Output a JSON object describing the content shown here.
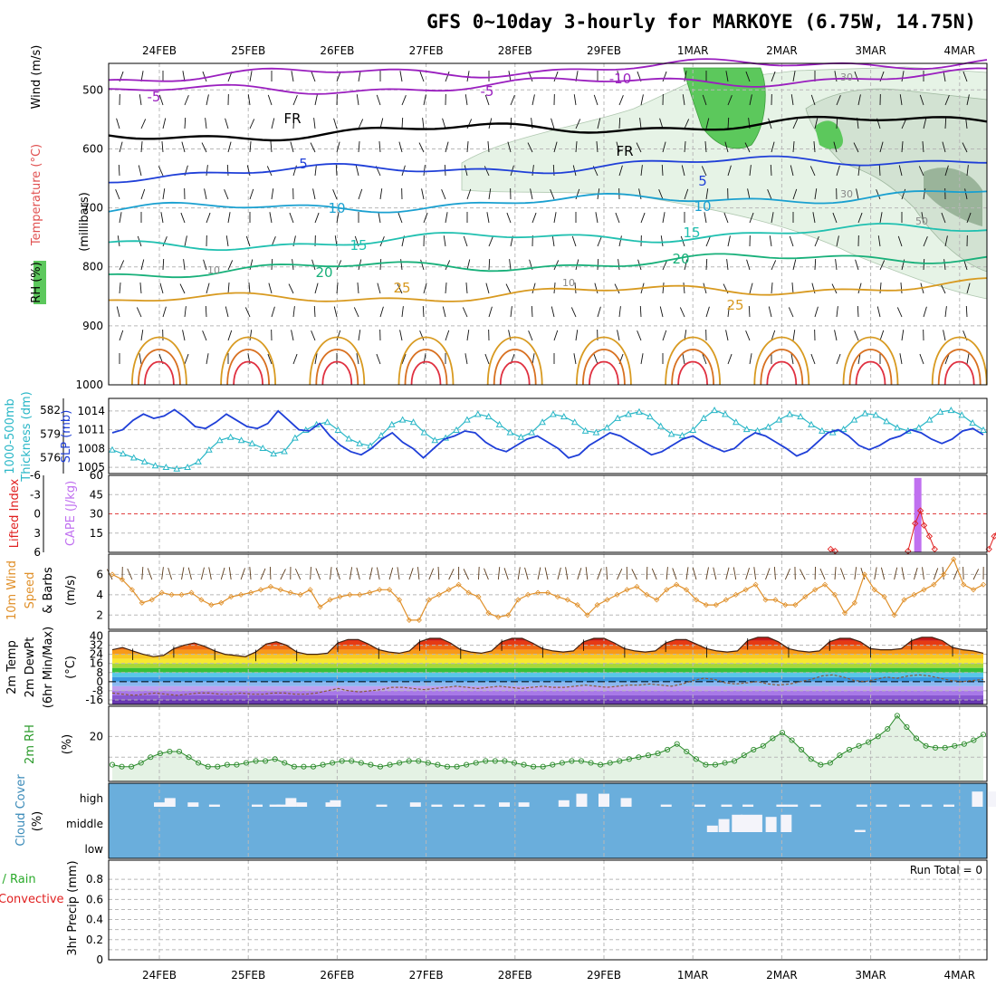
{
  "title": "GFS 0~10day 3-hourly for MARKOYE (6.75W, 14.75N)",
  "run_total": "Run Total = 0",
  "colors": {
    "temp_labels": [
      "#9a1fbf",
      "#1f3fd8",
      "#1aa0d0",
      "#20c0b0",
      "#18b07a",
      "#d89a20",
      "#d87020"
    ],
    "wind_series": "#e0902a",
    "thickness": "#2ab7c7",
    "slp": "#1f3fd8",
    "cape": "#c070f0",
    "lifted": "#e02020",
    "rh2m": "#2a8a2a",
    "cloud": "#6aaedc",
    "precip_total": "#2aaa2a",
    "precip_conv": "#e02020"
  },
  "chart_data": [
    {
      "type": "line",
      "name": "upper_air",
      "x_dates": [
        "24FEB",
        "25FEB",
        "26FEB",
        "27FEB",
        "28FEB",
        "29FEB",
        "1MAR",
        "2MAR",
        "3MAR",
        "4MAR"
      ],
      "left_axis": {
        "lines": [
          "Wind (m/s)",
          "Temperature (°C)",
          "RH (%)"
        ]
      },
      "right_axis_label": "(millibars)",
      "ylabel_units": "(millibars)",
      "yticks": [
        500,
        600,
        700,
        800,
        900,
        1000
      ],
      "ylim": [
        455,
        1000
      ],
      "contour_labels": [
        "-10",
        "-5",
        "-5",
        "FR",
        "FR",
        "5",
        "5",
        "10",
        "10",
        "15",
        "15",
        "20",
        "20",
        "25",
        "25",
        "30",
        "30",
        "50",
        "10",
        "10"
      ],
      "isotherms": [
        {
          "label": "-10",
          "level": "480",
          "color": "#9a1fbf"
        },
        {
          "label": "-5",
          "level": "505",
          "color": "#9a1fbf"
        },
        {
          "label": "FR",
          "level": "580",
          "color": "#000000"
        },
        {
          "label": "5",
          "level": "645",
          "color": "#1f3fd8"
        },
        {
          "label": "10",
          "level": "705",
          "color": "#1aa0d0"
        },
        {
          "label": "15",
          "level": "765",
          "color": "#20c0b0"
        },
        {
          "label": "20",
          "level": "810",
          "color": "#18b07a"
        },
        {
          "label": "25",
          "level": "860",
          "color": "#d89a20"
        }
      ]
    },
    {
      "type": "line",
      "name": "thickness_slp",
      "left_axis": {
        "lines": [
          "1000-500mb",
          "Thickness (dm)"
        ]
      },
      "right_axis_label": "SLP (mb)",
      "thickness_ticks": [
        "582",
        "579",
        "576"
      ],
      "slp_ticks": [
        "1014",
        "1011",
        "1008",
        "1005"
      ],
      "series": [
        {
          "name": "Thickness",
          "values": [
            577,
            576.5,
            576,
            575.5,
            575,
            574.8,
            574.6,
            574.8,
            575.5,
            577,
            578.2,
            578.6,
            578.2,
            577.8,
            577.2,
            576.5,
            576.8,
            578.5,
            579.5,
            580.2,
            580.5,
            579.5,
            578.4,
            577.8,
            577.5,
            578.8,
            580.2,
            580.8,
            580.5,
            579.2,
            578.2,
            578.5,
            579.5,
            580.8,
            581.5,
            581.2,
            580.2,
            579.2,
            578.6,
            579.2,
            580.5,
            581.5,
            581.2,
            580.5,
            579.4,
            579.2,
            579.8,
            581,
            581.5,
            581.8,
            581.2,
            580,
            579,
            578.8,
            579.5,
            581,
            582,
            581.5,
            580.5,
            579.6,
            579.4,
            579.9,
            580.8,
            581.5,
            581.2,
            580.2,
            579.4,
            579.2,
            579.6,
            580.8,
            581.6,
            581.4,
            580.6,
            579.8,
            579.4,
            579.8,
            580.8,
            581.8,
            582,
            581.4,
            580.4,
            579.5
          ]
        },
        {
          "name": "SLP",
          "values": [
            1010.5,
            1011,
            1012.5,
            1013.5,
            1012.8,
            1013.2,
            1014.2,
            1013,
            1011.5,
            1011.2,
            1012.2,
            1013.5,
            1012.5,
            1011.5,
            1011.2,
            1012,
            1014,
            1012.5,
            1011,
            1010.8,
            1012,
            1010,
            1008.5,
            1007.5,
            1007,
            1008,
            1009.5,
            1010.5,
            1009,
            1008,
            1006.5,
            1008,
            1009.5,
            1010,
            1010.8,
            1010.5,
            1009,
            1008,
            1007.5,
            1008.5,
            1009.5,
            1010,
            1009,
            1008,
            1006.5,
            1007,
            1008.5,
            1009.5,
            1010.5,
            1010,
            1009,
            1008,
            1007,
            1007.5,
            1008.5,
            1009.5,
            1010,
            1009,
            1008.2,
            1007.5,
            1008,
            1009.5,
            1010.5,
            1010,
            1009,
            1008,
            1006.8,
            1007.5,
            1009,
            1010.5,
            1011,
            1010,
            1008.5,
            1007.8,
            1008.5,
            1009.5,
            1010,
            1011,
            1010.5,
            1009.5,
            1008.8,
            1009.5,
            1010.8,
            1011.2,
            1010.2
          ]
        }
      ]
    },
    {
      "type": "bar",
      "name": "lifted_cape",
      "left_axis": {
        "lines": [
          "Lifted Index"
        ]
      },
      "right_axis_label": "CAPE (J/kg)",
      "li_ticks": [
        "-6",
        "-3",
        "0",
        "3",
        "6"
      ],
      "cape_ticks": [
        "60",
        "45",
        "30",
        "15"
      ],
      "series": [
        {
          "name": "CAPE",
          "values": [
            {
              "day": 8.53,
              "value": 58
            },
            {
              "day": 9.48,
              "value": 1
            }
          ]
        },
        {
          "name": "Lifted Index",
          "values": [
            {
              "day": 8.42,
              "value": 5.8
            },
            {
              "day": 8.5,
              "value": 1.5
            },
            {
              "day": 8.56,
              "value": -0.5
            },
            {
              "day": 8.6,
              "value": 1.8
            },
            {
              "day": 8.66,
              "value": 3.5
            },
            {
              "day": 8.72,
              "value": 5.5
            },
            {
              "day": 9.33,
              "value": 5.5
            },
            {
              "day": 9.39,
              "value": 3.5
            },
            {
              "day": 9.45,
              "value": 1.8
            },
            {
              "day": 9.51,
              "value": 2.5
            },
            {
              "day": 9.57,
              "value": 2.4
            },
            {
              "day": 9.63,
              "value": 3.2
            },
            {
              "day": 9.69,
              "value": 5.5
            },
            {
              "day": 7.55,
              "value": 5.5
            },
            {
              "day": 7.6,
              "value": 5.8
            }
          ]
        }
      ]
    },
    {
      "type": "line",
      "name": "wind10m",
      "left_axis": {
        "lines": [
          "10m Wind",
          "Speed",
          "& Barbs"
        ]
      },
      "yticks": [
        "6",
        "4",
        "2"
      ],
      "ylabel_units": "(m/s)",
      "series": [
        {
          "name": "Wind Speed",
          "values": [
            6,
            5.5,
            4.5,
            3.2,
            3.5,
            4.2,
            4,
            4,
            4.2,
            3.5,
            3,
            3.2,
            3.8,
            4,
            4.2,
            4.5,
            4.8,
            4.5,
            4.2,
            4,
            4.5,
            2.8,
            3.5,
            3.8,
            4,
            4,
            4.2,
            4.5,
            4.5,
            3.5,
            1.5,
            1.5,
            3.5,
            4,
            4.5,
            5,
            4.2,
            3.8,
            2.2,
            1.8,
            2,
            3.5,
            4,
            4.2,
            4.2,
            3.8,
            3.5,
            3,
            2,
            3,
            3.5,
            4,
            4.5,
            4.8,
            4,
            3.5,
            4.5,
            5,
            4.5,
            3.5,
            3,
            3,
            3.5,
            4,
            4.5,
            5,
            3.5,
            3.5,
            3,
            3,
            3.8,
            4.5,
            5,
            4,
            2.2,
            3.2,
            6,
            4.5,
            3.8,
            2,
            3.5,
            4,
            4.5,
            5,
            6,
            7.5,
            5,
            4.5,
            5
          ]
        }
      ]
    },
    {
      "type": "area",
      "name": "temp2m",
      "left_axis": {
        "lines": [
          "2m Temp",
          "2m DewPt",
          "(6hr Min/Max)"
        ]
      },
      "ylabel_units": "(°C)",
      "yticks": [
        "40",
        "32",
        "24",
        "16",
        "8",
        "0",
        "-8",
        "-16"
      ],
      "series": [
        {
          "name": "Temperature",
          "values": [
            28,
            30,
            27,
            24,
            22,
            23,
            29,
            32,
            34,
            31,
            27,
            24,
            23,
            22,
            26,
            33,
            35,
            32,
            26,
            24,
            24,
            25,
            34,
            37,
            37,
            33,
            28,
            26,
            25,
            27,
            35,
            38,
            38,
            34,
            28,
            26,
            25,
            27,
            35,
            38,
            38,
            34,
            29,
            27,
            26,
            27,
            35,
            38,
            38,
            34,
            29,
            27,
            26,
            27,
            34,
            37,
            37,
            33,
            29,
            27,
            26,
            27,
            36,
            39,
            39,
            35,
            29,
            27,
            26,
            27,
            35,
            38,
            38,
            35,
            29,
            28,
            28,
            29,
            36,
            39,
            39,
            36,
            30,
            28,
            27,
            25
          ]
        },
        {
          "name": "DewPoint",
          "values": [
            -10,
            -11,
            -12,
            -11,
            -10,
            -11,
            -12,
            -11,
            -10,
            -10,
            -11,
            -11,
            -10,
            -11,
            -11,
            -10,
            -10,
            -11,
            -11,
            -10,
            -8,
            -6,
            -8,
            -9,
            -8,
            -7,
            -5,
            -5,
            -6,
            -7,
            -6,
            -5,
            -4,
            -5,
            -6,
            -5,
            -4,
            -5,
            -6,
            -5,
            -4,
            -5,
            -5,
            -4,
            -3,
            -4,
            -5,
            -4,
            -3,
            -3,
            -2,
            -3,
            -4,
            -2,
            1,
            3,
            2,
            -1,
            -2,
            -1,
            0,
            -2,
            -3,
            -2,
            0,
            2,
            5,
            6,
            4,
            1,
            0,
            2,
            4,
            3,
            5,
            6,
            5,
            3,
            1,
            0,
            1,
            2
          ]
        }
      ]
    },
    {
      "type": "area",
      "name": "rh2m",
      "left_axis": {
        "lines": [
          "2m RH"
        ]
      },
      "ylabel_units": "(%)",
      "yticks": [
        "20"
      ],
      "series": [
        {
          "name": "RH",
          "values": [
            5,
            4,
            4,
            6,
            9,
            11,
            12,
            12,
            9,
            6,
            4,
            4,
            5,
            5,
            6,
            7,
            7,
            8,
            6,
            4,
            4,
            4,
            5,
            6,
            7,
            7,
            6,
            5,
            4,
            5,
            6,
            7,
            7,
            6,
            5,
            4,
            4,
            5,
            6,
            7,
            7,
            7,
            6,
            5,
            4,
            4,
            5,
            6,
            7,
            7,
            6,
            5,
            6,
            7,
            8,
            9,
            10,
            11,
            13,
            16,
            12,
            8,
            5,
            5,
            6,
            7,
            10,
            13,
            15,
            19,
            22,
            18,
            13,
            8,
            5,
            6,
            10,
            13,
            15,
            17,
            20,
            24,
            31,
            25,
            19,
            15,
            14,
            14,
            15,
            16,
            18,
            21
          ]
        }
      ]
    },
    {
      "type": "bar",
      "name": "cloud",
      "left_axis": {
        "lines": [
          "Cloud Cover"
        ]
      },
      "ylabel_units": "(%)",
      "ytick_labels": [
        "high",
        "middle",
        "low"
      ],
      "series": [
        {
          "name": "High cloud gaps",
          "values": [
            {
              "day": 0.0,
              "value": 2
            },
            {
              "day": 0.12,
              "value": 4
            },
            {
              "day": 0.38,
              "value": 2
            },
            {
              "day": 0.62,
              "value": 1
            },
            {
              "day": 1.1,
              "value": 1
            },
            {
              "day": 1.3,
              "value": 1
            },
            {
              "day": 1.38,
              "value": 1
            },
            {
              "day": 1.6,
              "value": 2
            },
            {
              "day": 1.93,
              "value": 2
            },
            {
              "day": 1.98,
              "value": 3
            },
            {
              "day": 1.48,
              "value": 4
            },
            {
              "day": 2.5,
              "value": 1
            },
            {
              "day": 2.88,
              "value": 2
            },
            {
              "day": 3.12,
              "value": 1
            },
            {
              "day": 3.37,
              "value": 1
            },
            {
              "day": 3.6,
              "value": 1
            },
            {
              "day": 3.88,
              "value": 2
            },
            {
              "day": 4.1,
              "value": 2
            },
            {
              "day": 4.55,
              "value": 3
            },
            {
              "day": 4.75,
              "value": 6
            },
            {
              "day": 5.0,
              "value": 6
            },
            {
              "day": 5.25,
              "value": 4
            },
            {
              "day": 5.7,
              "value": 1
            },
            {
              "day": 6.08,
              "value": 1
            },
            {
              "day": 6.38,
              "value": 1
            },
            {
              "day": 6.62,
              "value": 1
            },
            {
              "day": 7.0,
              "value": 1
            },
            {
              "day": 7.12,
              "value": 1
            },
            {
              "day": 7.38,
              "value": 1
            },
            {
              "day": 7.9,
              "value": 1
            },
            {
              "day": 8.12,
              "value": 1
            },
            {
              "day": 8.38,
              "value": 1
            },
            {
              "day": 8.63,
              "value": 1
            },
            {
              "day": 8.88,
              "value": 1
            },
            {
              "day": 9.2,
              "value": 7
            },
            {
              "day": 9.38,
              "value": 7
            },
            {
              "day": 9.62,
              "value": 2
            },
            {
              "day": 9.88,
              "value": 2
            },
            {
              "day": 9.95,
              "value": 2
            }
          ]
        },
        {
          "name": "Middle cloud gaps",
          "values": [
            {
              "day": 6.22,
              "value": 3
            },
            {
              "day": 6.35,
              "value": 6
            },
            {
              "day": 6.5,
              "value": 8
            },
            {
              "day": 6.6,
              "value": 8
            },
            {
              "day": 6.72,
              "value": 8
            },
            {
              "day": 6.88,
              "value": 7
            },
            {
              "day": 7.05,
              "value": 8
            },
            {
              "day": 7.88,
              "value": 1
            }
          ]
        }
      ]
    },
    {
      "type": "bar",
      "name": "precip",
      "left_axis": {
        "lines": [
          "Total / Rain",
          "Convective"
        ]
      },
      "ylabel_units": "3hr Precip (mm)",
      "yticks": [
        "0.8",
        "0.6",
        "0.4",
        "0.2",
        "0"
      ],
      "series": [
        {
          "name": "Total",
          "values": []
        },
        {
          "name": "Convective",
          "values": []
        }
      ]
    }
  ]
}
